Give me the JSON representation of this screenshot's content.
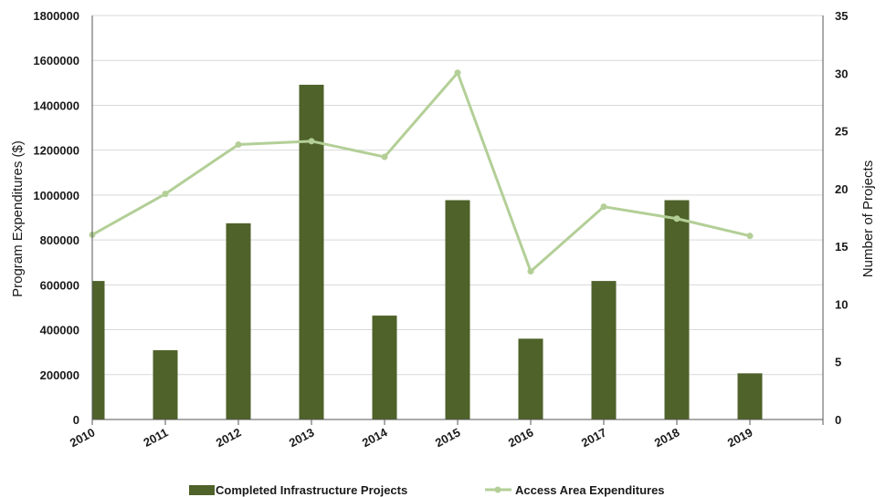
{
  "chart_data": {
    "type": "bar",
    "categories": [
      "2010",
      "2011",
      "2012",
      "2013",
      "2014",
      "2015",
      "2016",
      "2017",
      "2018",
      "2019"
    ],
    "series": [
      {
        "name": "Completed Infrastructure Projects",
        "type": "bar",
        "axis": "right",
        "color": "#4e6229",
        "values": [
          12,
          6,
          17,
          29,
          9,
          19,
          7,
          12,
          19,
          4
        ]
      },
      {
        "name": "Access Area Expenditures",
        "type": "line",
        "axis": "left",
        "color": "#b3cf97",
        "values": [
          823000,
          1005000,
          1225000,
          1240000,
          1170000,
          1545000,
          660000,
          948000,
          895000,
          818000
        ]
      }
    ],
    "ylabel": "Program Expenditures ($)",
    "y2label": "Number of Projects",
    "ylim": [
      0,
      1800000
    ],
    "y2lim": [
      0,
      35
    ],
    "yticks": [
      "0",
      "200000",
      "400000",
      "600000",
      "800000",
      "1000000",
      "1200000",
      "1400000",
      "1600000",
      "1800000"
    ],
    "y2ticks": [
      "0",
      "5",
      "10",
      "15",
      "20",
      "25",
      "30",
      "35"
    ],
    "grid": true,
    "legend_position": "bottom"
  }
}
